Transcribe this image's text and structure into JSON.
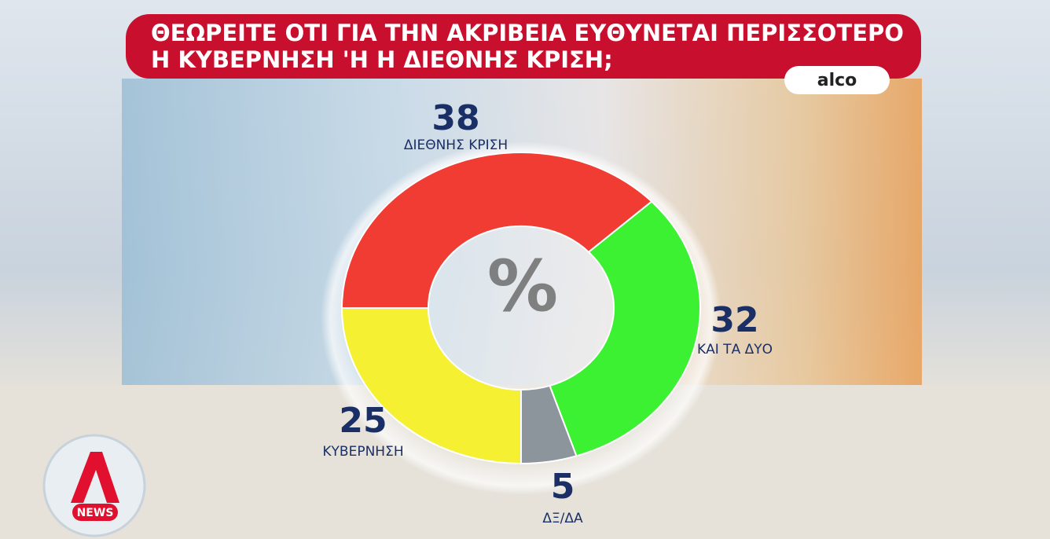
{
  "chart_data": {
    "type": "donut",
    "title": [
      "ΘΕΩΡΕΙΤΕ ΟΤΙ ΓΙΑ ΤΗΝ ΑΚΡΙΒΕΙΑ ΕΥΘΥΝΕΤΑΙ ΠΕΡΙΣΣΟΤΕΡΟ",
      "Η ΚΥΒΕΡΝΗΣΗ 'Η Η ΔΙΕΘΝΗΣ ΚΡΙΣΗ;"
    ],
    "source": "alco",
    "center_label": "%",
    "categories": [
      "ΚΥΒΕΡΝΗΣΗ",
      "ΔΙΕΘΝΗΣ ΚΡΙΣΗ",
      "ΚΑΙ ΤΑ ΔΥΟ",
      "ΔΞ/ΔΑ"
    ],
    "values": [
      25,
      38,
      32,
      5
    ],
    "colors": [
      "#f5f032",
      "#f03c32",
      "#3cf032",
      "#8c949c"
    ]
  },
  "logo": "NEWS"
}
